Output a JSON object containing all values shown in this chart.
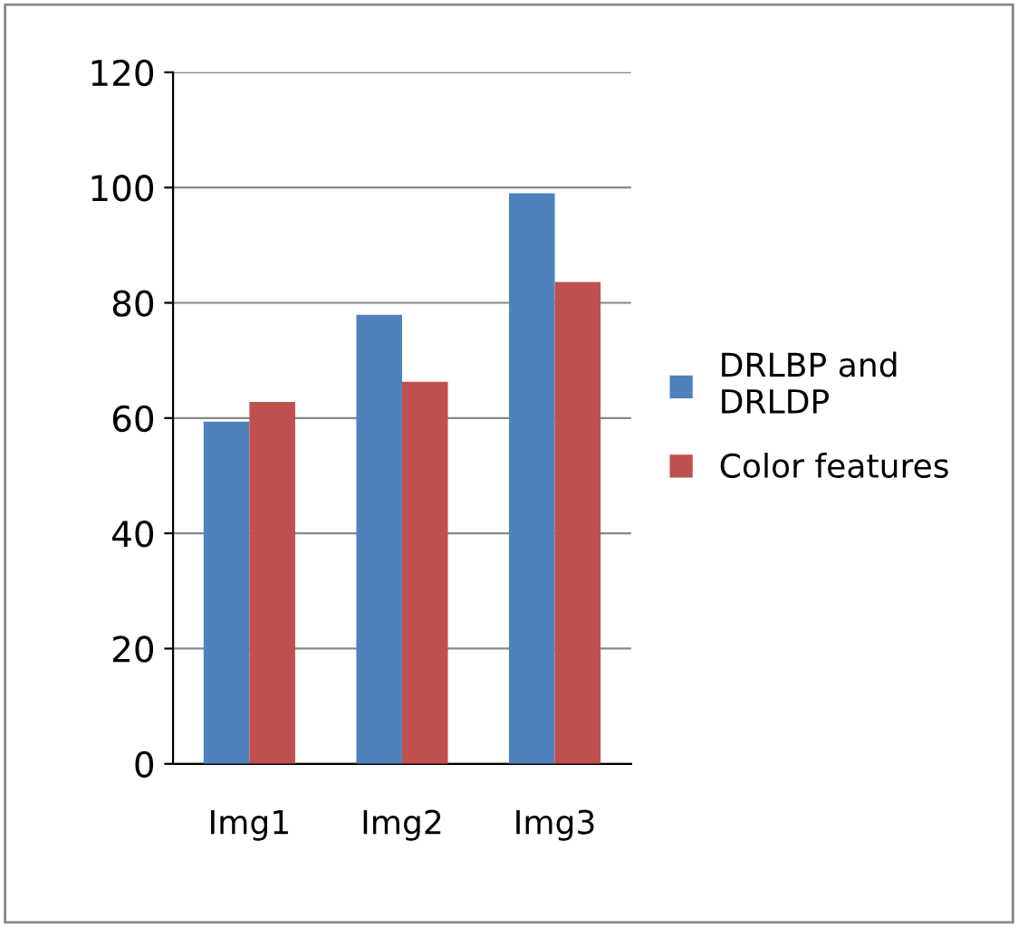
{
  "chart_data": {
    "type": "bar",
    "categories": [
      "Img1",
      "Img2",
      "Img3"
    ],
    "series": [
      {
        "name": "DRLBP and\nDRLDP",
        "color": "#4f81bd",
        "values": [
          59.4,
          77.9,
          99
        ]
      },
      {
        "name": "Color features",
        "color": "#c0504d",
        "values": [
          62.8,
          66.3,
          83.6
        ]
      }
    ],
    "ylim": [
      0,
      120
    ],
    "yticks": [
      0,
      20,
      40,
      60,
      80,
      100,
      120
    ],
    "grid": "y",
    "legend": "right"
  }
}
